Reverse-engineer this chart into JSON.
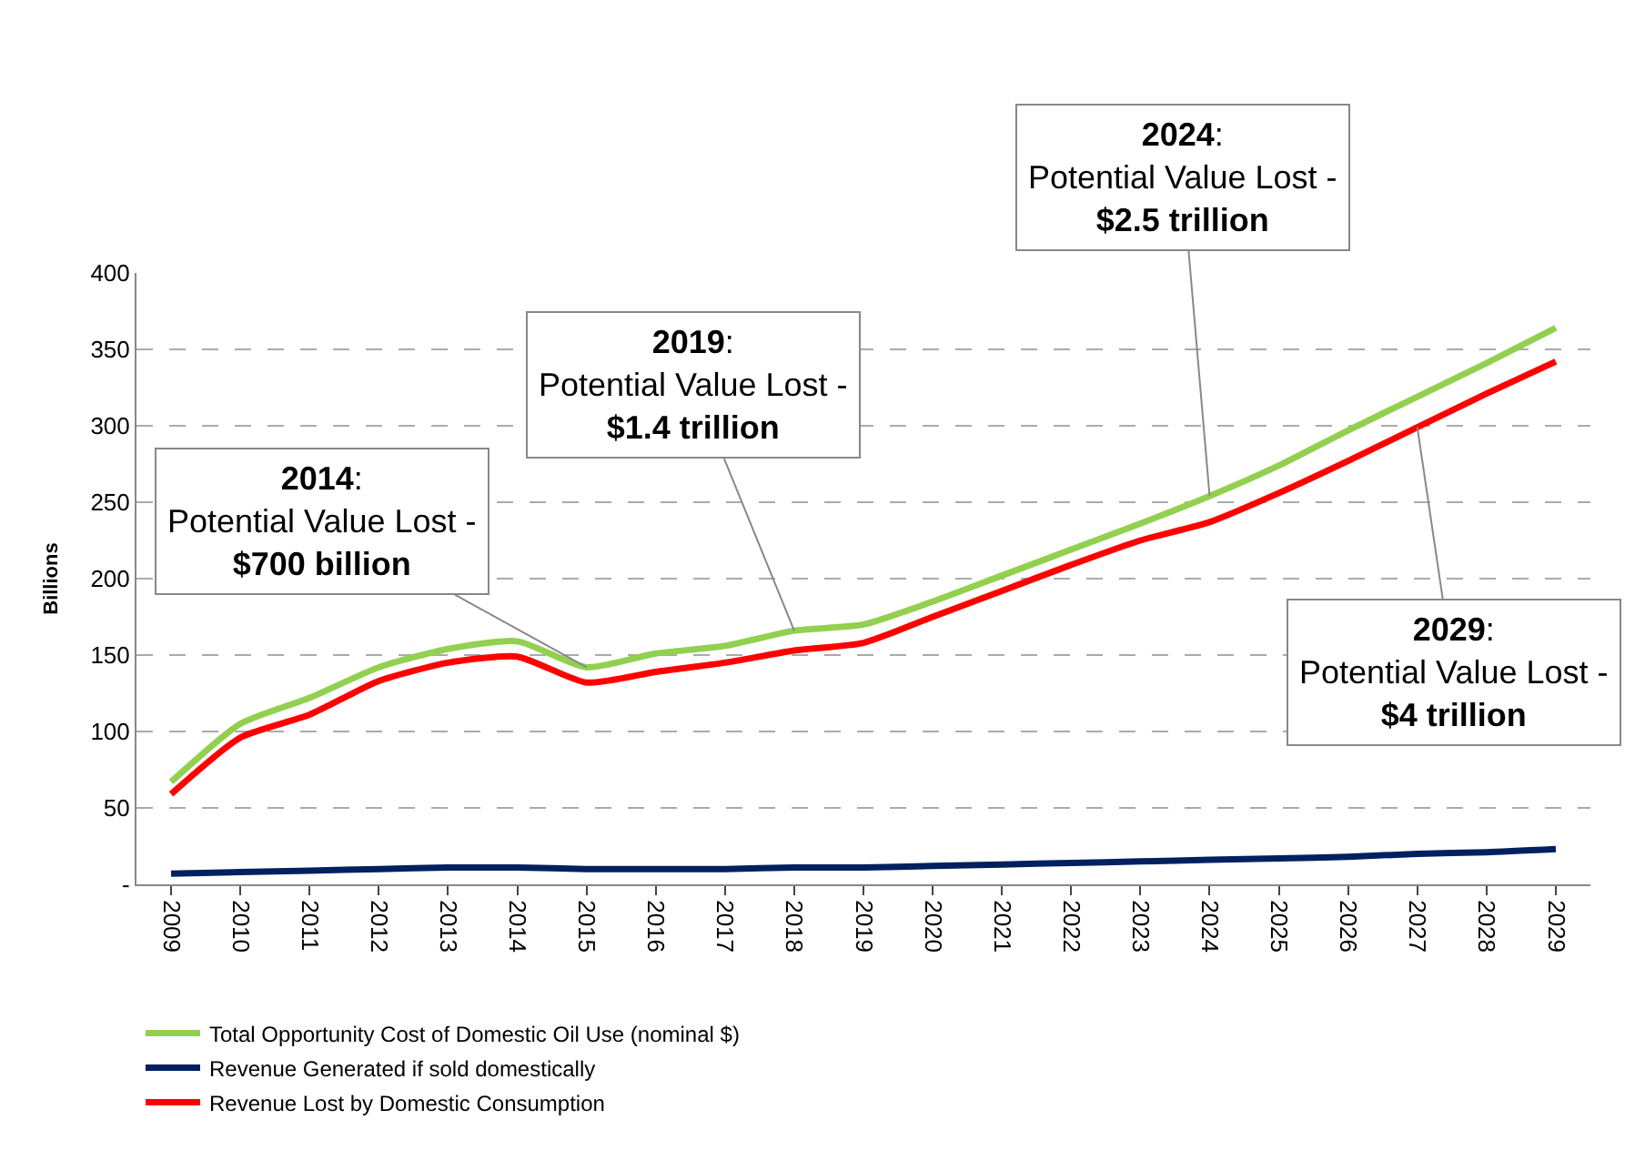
{
  "chart_data": {
    "type": "line",
    "ylabel": "Billions",
    "categories": [
      "2009",
      "2010",
      "2011",
      "2012",
      "2013",
      "2014",
      "2015",
      "2016",
      "2017",
      "2018",
      "2019",
      "2020",
      "2021",
      "2022",
      "2023",
      "2024",
      "2025",
      "2026",
      "2027",
      "2028",
      "2029"
    ],
    "series": [
      {
        "name": "Total Opportunity Cost of Domestic Oil Use (nominal $)",
        "color": "#92d050",
        "values": [
          67,
          105,
          122,
          142,
          154,
          159,
          142,
          151,
          156,
          166,
          170,
          185,
          202,
          219,
          236,
          254,
          274,
          297,
          319,
          341,
          364
        ]
      },
      {
        "name": "Revenue Generated if sold domestically",
        "color": "#002060",
        "values": [
          7,
          8,
          9,
          10,
          11,
          11,
          10,
          10,
          10,
          11,
          11,
          12,
          13,
          14,
          15,
          16,
          17,
          18,
          20,
          21,
          23
        ]
      },
      {
        "name": "Revenue Lost by Domestic Consumption",
        "color": "#ff0000",
        "values": [
          59,
          96,
          111,
          133,
          145,
          149,
          132,
          139,
          145,
          153,
          158,
          175,
          192,
          209,
          225,
          237,
          256,
          277,
          299,
          321,
          342
        ]
      }
    ],
    "ylim": [
      0,
      400
    ],
    "yticks": [
      {
        "value": 0,
        "label": "-"
      },
      50,
      100,
      150,
      200,
      250,
      300,
      350,
      400
    ],
    "grid": "y",
    "legend": "bottom",
    "line_style": "solid",
    "marker": "none",
    "annotations": [
      {
        "text": "2014: Potential Value Lost - $700 billion",
        "x": "2015",
        "y": 142
      },
      {
        "text": "2019: Potential Value Lost - $1.4 trillion",
        "x": "2018",
        "y": 166
      },
      {
        "text": "2024: Potential Value Lost - $2.5 trillion",
        "x": "2024",
        "y": 254
      },
      {
        "text": "2029: Potential Value Lost - $4 trillion",
        "x": "2027",
        "y": 299
      }
    ]
  }
}
